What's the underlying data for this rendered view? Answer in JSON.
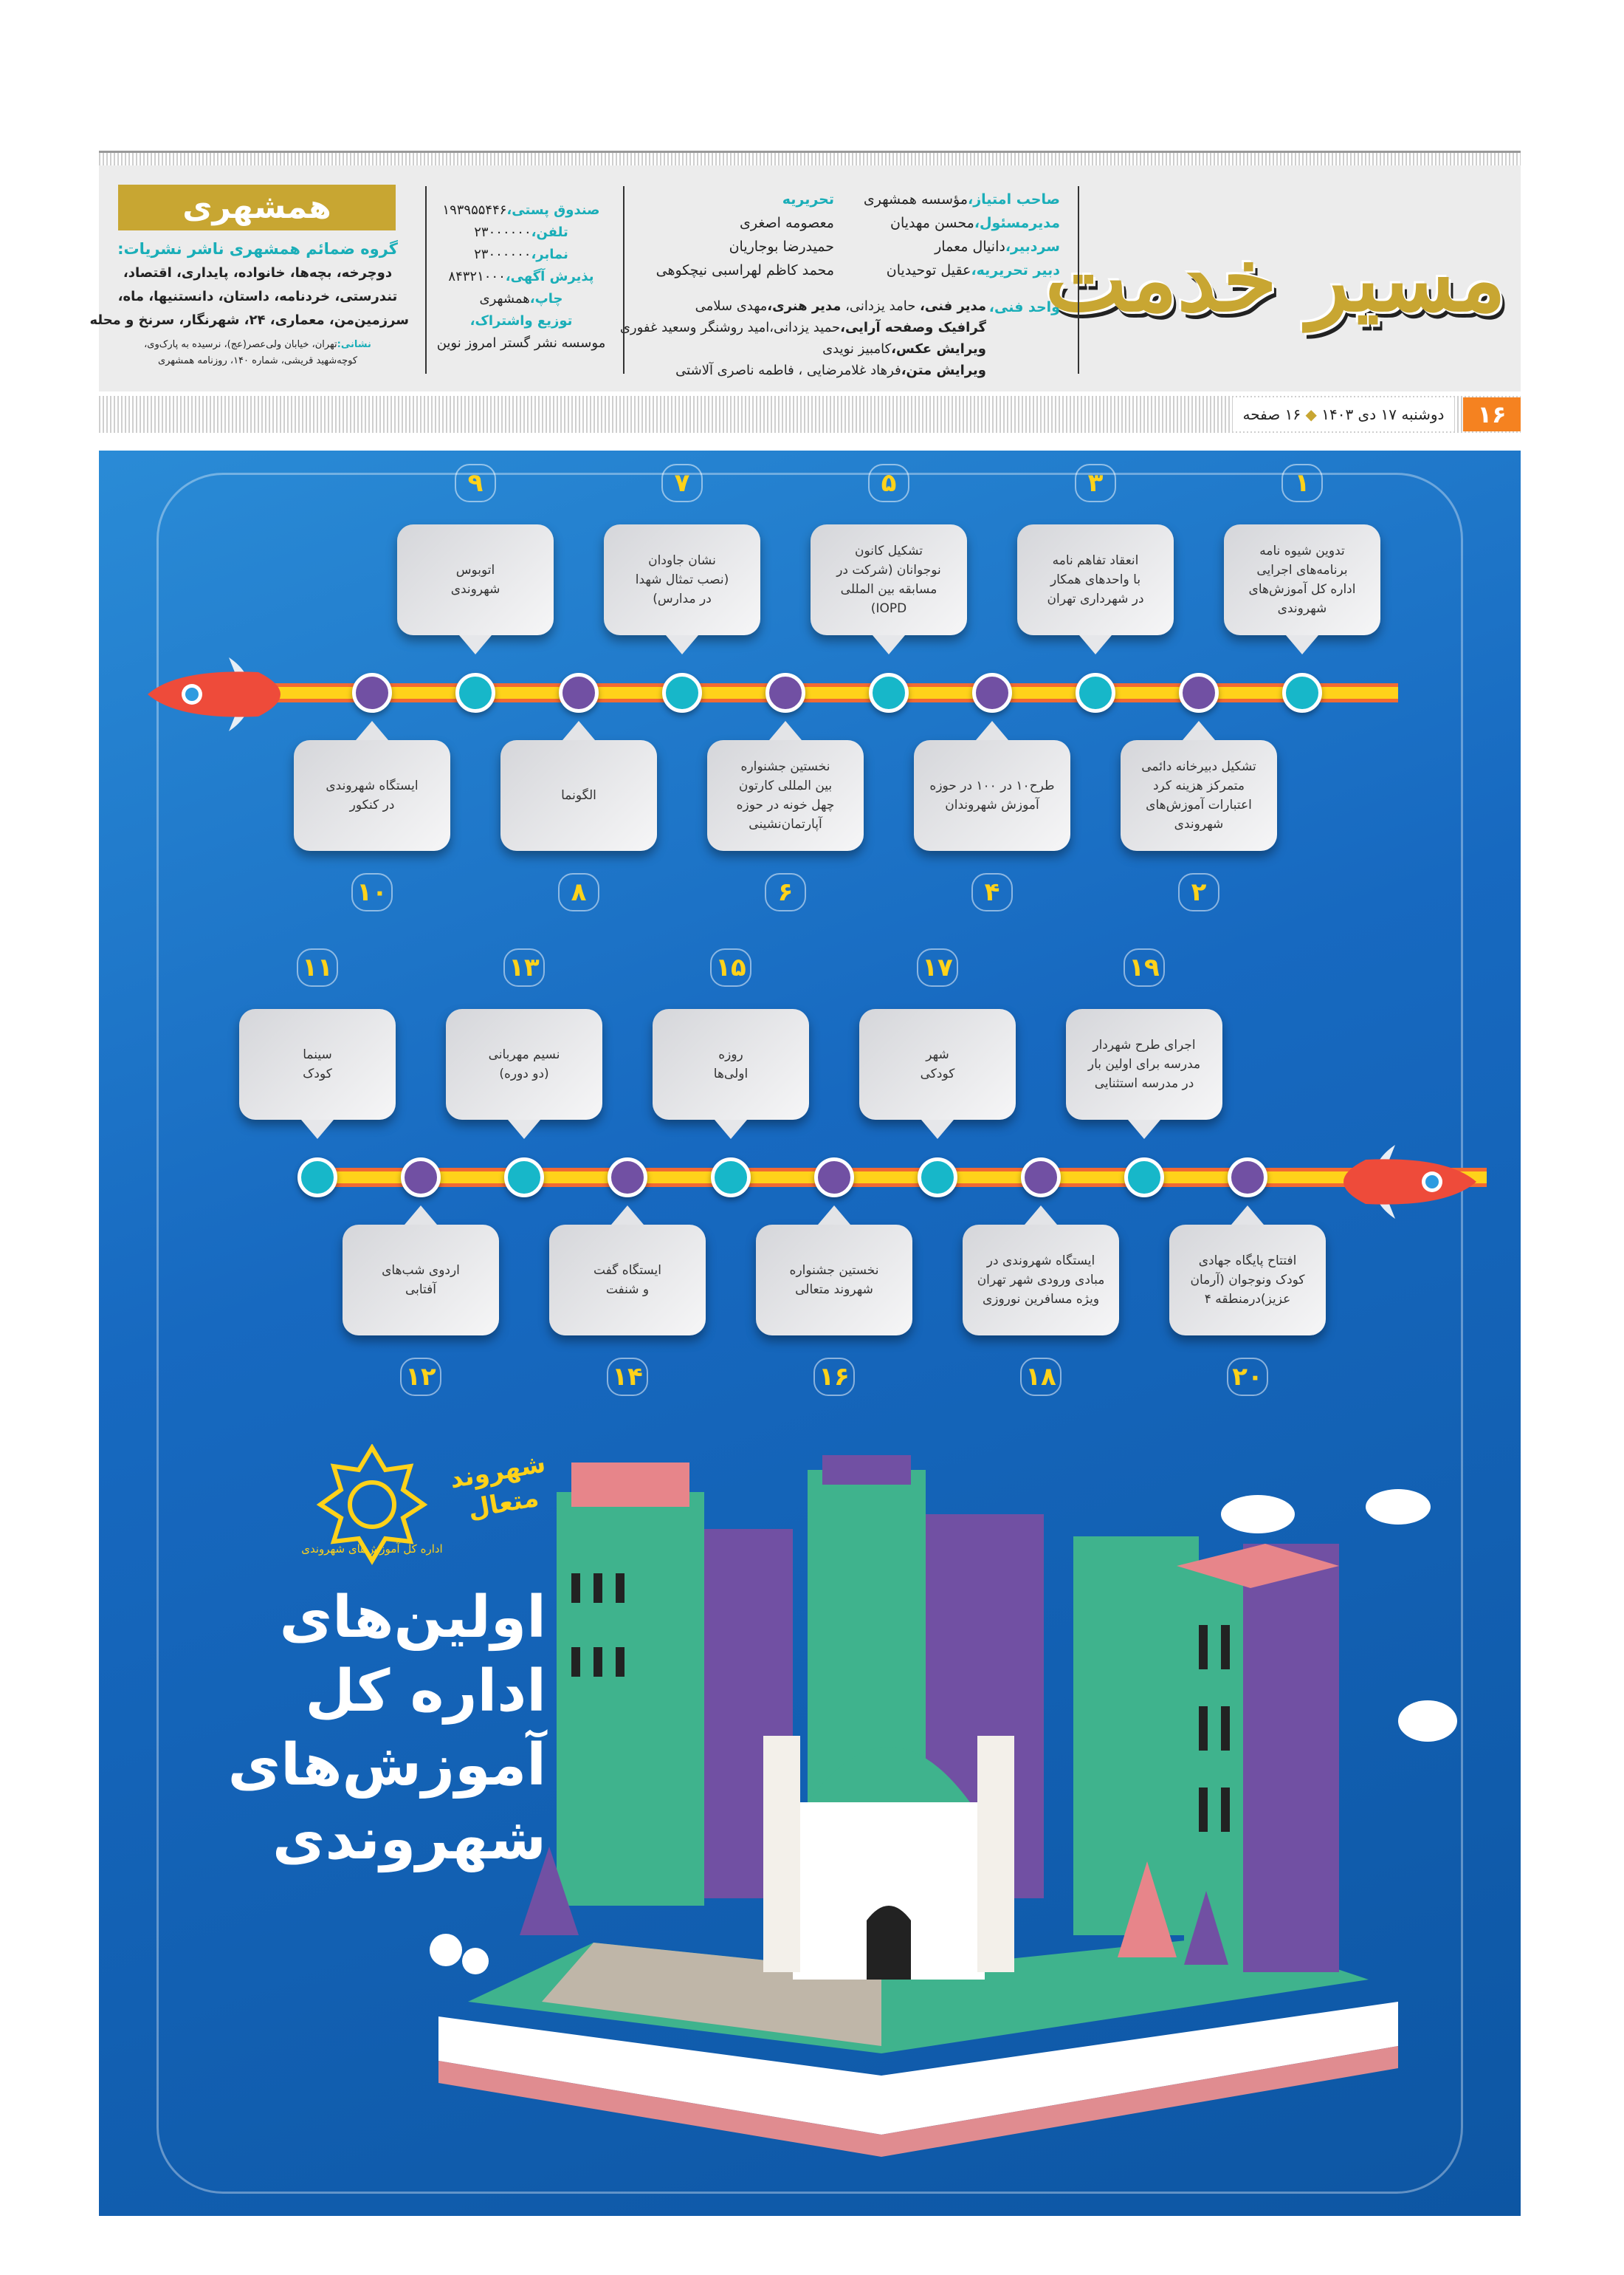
{
  "masthead": {
    "logo_text": "مسیر خدمت",
    "publisher_logo": "همشهری"
  },
  "staff": [
    {
      "label": "صاحب امتیاز،",
      "value": "مؤسسه همشهری"
    },
    {
      "label": "مدیرمسئول،",
      "value": "محسن مهدیان"
    },
    {
      "label": "سردبیر،",
      "value": "دانیال معمار"
    },
    {
      "label": "دبیر تحریریه،",
      "value": "عقیل توحیدیان"
    }
  ],
  "editorial": {
    "label": "تحریریه",
    "names": [
      "معصومه اصغری",
      "حمیدرضا بوجاریان",
      "محمد کاظم لهراسبی نیچکوهی"
    ]
  },
  "technical": {
    "label": "واحد فنی،",
    "lines": [
      {
        "b1": "مدیر فنی،",
        "t1": " حامد یزدانی، ",
        "b2": "مدیر هنری،",
        "t2": "مهدی سلامی"
      },
      {
        "b1": "گرافیک وصفحه آرایی،",
        "t1": "حمید یزدانی،امید روشنگر وسعید غفوری",
        "b2": "",
        "t2": ""
      },
      {
        "b1": "ویرایش عکس،",
        "t1": "کامبیز نویدی",
        "b2": "",
        "t2": ""
      },
      {
        "b1": "ویرایش متن،",
        "t1": "فرهاد غلامرضایی ، فاطمه ناصری آلاشتی",
        "b2": "",
        "t2": ""
      }
    ]
  },
  "contact": [
    {
      "label": "صندوق پستی،",
      "value": "۱۹۳۹۵۵۴۴۶"
    },
    {
      "label": "تلفن،",
      "value": "۲۳۰۰۰۰۰۰"
    },
    {
      "label": "نمابر،",
      "value": "۲۳۰۰۰۰۰۰"
    },
    {
      "label": "پذیرش آگهی،",
      "value": "۸۴۳۲۱۰۰۰"
    },
    {
      "label": "چاپ،",
      "value": "همشهری"
    },
    {
      "label": "توزیع واشتراک،",
      "value": ""
    },
    {
      "label": "",
      "value": "موسسه نشر گستر امروز نوین"
    }
  ],
  "group": {
    "heading": "گروه ضمائم همشهری ناشر نشریات:",
    "lines": [
      "دوچرخه، بچه‌ها، خانواده، پایداری، اقتصاد،",
      "تندرستی، خردنامه، داستان، دانستنیها، ماه،",
      "سرزمین‌من، معماری، ۲۴، شهرنگار، سرنخ و محله"
    ],
    "address_label": "نشانی:",
    "address": "تهران، خیابان ولی‌عصر(عج)، نرسیده به پارک‌وی،",
    "address2": "کوچه‌شهید قریشی، شماره ۱۴۰، روزنامه همشهری"
  },
  "dateline": {
    "date": "دوشنبه ۱۷ دی ۱۴۰۳",
    "pages": "۱۶ صفحه",
    "page_number": "۱۶"
  },
  "colors": {
    "accent_orange": "#f58220",
    "gold": "#c8a632",
    "teal": "#1aaeb8",
    "node_odd": "#17b7c9",
    "node_even": "#7150a3",
    "poster_blue": "#1769c0",
    "number_yellow": "#ffd21a"
  },
  "timeline": [
    {
      "n": "۱",
      "text": "تدوین شیوه نامه\nبرنامه‌های اجرایی\nاداره کل آموزش‌های\nشهروندی"
    },
    {
      "n": "۲",
      "text": "تشکیل دبیرخانه دائمی\nمتمرکز هزینه کرد\nاعتبارات آموزش‌های\nشهروندی"
    },
    {
      "n": "۳",
      "text": "انعقاد تفاهم نامه\nبا واحدهای همکار\nدر شهرداری تهران"
    },
    {
      "n": "۴",
      "text": "طرح۱۰ در ۱۰۰ در حوزه\nآموزش شهروندان"
    },
    {
      "n": "۵",
      "text": "تشکیل کانون\nنوجوانان (شرکت در\nمسابقه بین المللی\nIOPD)"
    },
    {
      "n": "۶",
      "text": "نخستین جشنواره\nبین المللی کارتون\nچهل خونه در حوزه\nآپارتمان‌نشینی"
    },
    {
      "n": "۷",
      "text": "نشان جاودان\n(نصب تمثال شهدا\nدر مدارس)"
    },
    {
      "n": "۸",
      "text": "الگونما"
    },
    {
      "n": "۹",
      "text": "اتوبوس\nشهروندی"
    },
    {
      "n": "۱۰",
      "text": "ایستگاه شهروندی\nدر کنکور"
    },
    {
      "n": "۱۱",
      "text": "سینما\nکودک"
    },
    {
      "n": "۱۲",
      "text": "اردوی شب‌های\nآفتابی"
    },
    {
      "n": "۱۳",
      "text": "نسیم مهربانی\n(دو دوره)"
    },
    {
      "n": "۱۴",
      "text": "ایستگاه گفت\nو شنفت"
    },
    {
      "n": "۱۵",
      "text": "روزه\nاولی‌ها"
    },
    {
      "n": "۱۶",
      "text": "نخستین جشنواره\nشهروند متعالی"
    },
    {
      "n": "۱۷",
      "text": "شهر\nکودکی"
    },
    {
      "n": "۱۸",
      "text": "ایستگاه شهروندی در\nمبادی ورودی شهر تهران\nویژه مسافرین نوروزی"
    },
    {
      "n": "۱۹",
      "text": "اجرای طرح شهردار\nمدرسه برای اولین بار\nدر مدرسه استثنایی"
    },
    {
      "n": "۲۰",
      "text": "افتتاح پایگاه جهادی\nکودک ونوجوان (آرمان\nعزیز)درمنطقه ۴"
    }
  ],
  "logos": {
    "motaal": "شهروند متعال",
    "tehran_unit": "اداره کل آموزش‌های شهروندی"
  },
  "poster_title": [
    "اولین‌های",
    "اداره کل",
    "آموزش‌های",
    "شهروندی"
  ]
}
